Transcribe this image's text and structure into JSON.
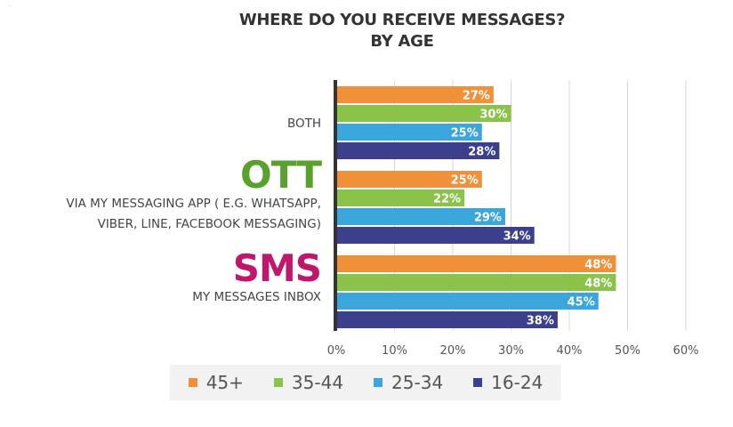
{
  "title_line1": "WHERE DO YOU RECEIVE MESSAGES?",
  "title_line2": "BY AGE",
  "corner_mark": ".",
  "chart_data": {
    "type": "bar",
    "orientation": "horizontal",
    "title": "WHERE DO YOU RECEIVE MESSAGES? BY AGE",
    "categories": [
      {
        "heading": "",
        "label_lines": [
          "BOTH"
        ],
        "heading_color": ""
      },
      {
        "heading": "OTT",
        "label_lines": [
          "VIA MY MESSAGING APP ( E.G. WHATSAPP,",
          "VIBER, LINE, FACEBOOK MESSAGING)"
        ],
        "heading_color": "#5aa02c"
      },
      {
        "heading": "SMS",
        "label_lines": [
          "MY MESSAGES INBOX"
        ],
        "heading_color": "#c0176c"
      }
    ],
    "series": [
      {
        "name": "45+",
        "color": "#f0913a",
        "values": [
          27,
          25,
          48
        ]
      },
      {
        "name": "35-44",
        "color": "#8bc34a",
        "values": [
          30,
          22,
          48
        ]
      },
      {
        "name": "25-34",
        "color": "#3aa6dc",
        "values": [
          25,
          29,
          45
        ]
      },
      {
        "name": "16-24",
        "color": "#3b3f8c",
        "values": [
          28,
          34,
          38
        ]
      }
    ],
    "value_suffix": "%",
    "xlim": [
      0,
      60
    ],
    "xticks": [
      "0%",
      "10%",
      "20%",
      "30%",
      "40%",
      "50%",
      "60%"
    ],
    "grid": true,
    "legend_position": "bottom"
  }
}
